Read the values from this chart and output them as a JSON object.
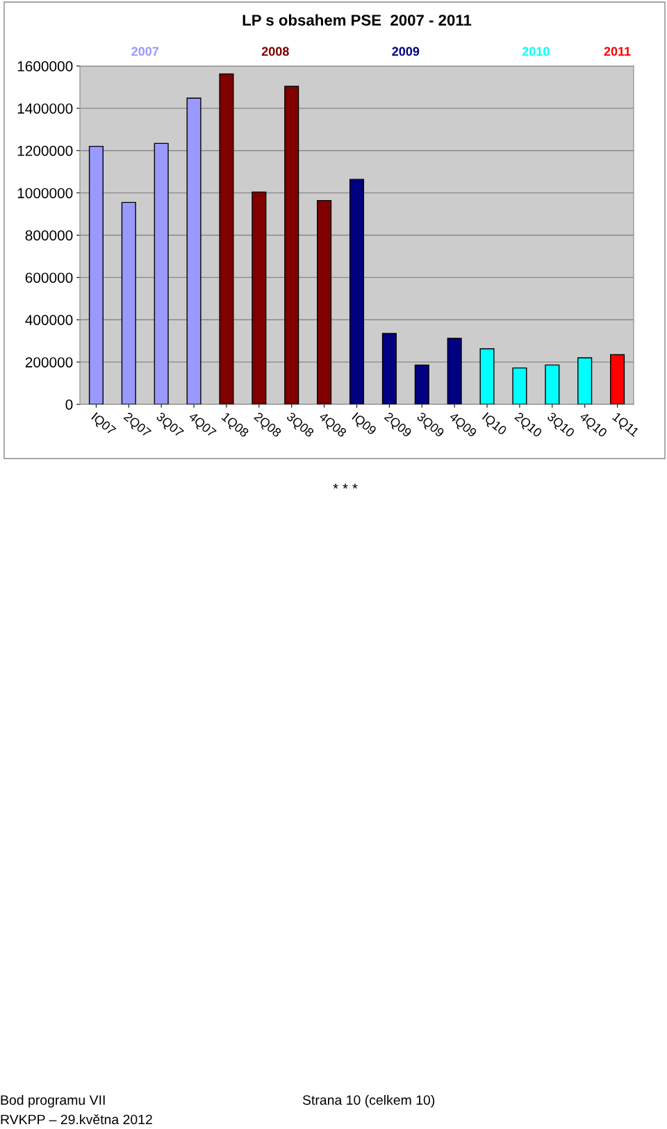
{
  "chart_data": {
    "type": "bar",
    "title": "LP s obsahem PSE  2007 - 2011",
    "categories": [
      "IQ07",
      "2Q07",
      "3Q07",
      "4Q07",
      "1Q08",
      "2Q08",
      "3Q08",
      "4Q08",
      "IQ09",
      "2Q09",
      "3Q09",
      "4Q09",
      "IQ10",
      "2Q10",
      "3Q10",
      "4Q10",
      "1Q11"
    ],
    "series": [
      {
        "name": "2007",
        "color": "#9999ff",
        "values": [
          1220000,
          955000,
          1234000,
          1448000,
          null,
          null,
          null,
          null,
          null,
          null,
          null,
          null,
          null,
          null,
          null,
          null,
          null
        ]
      },
      {
        "name": "2008",
        "color": "#800000",
        "values": [
          null,
          null,
          null,
          null,
          1562000,
          1004000,
          1504000,
          964000,
          null,
          null,
          null,
          null,
          null,
          null,
          null,
          null,
          null
        ]
      },
      {
        "name": "2009",
        "color": "#000080",
        "values": [
          null,
          null,
          null,
          null,
          null,
          null,
          null,
          null,
          1064000,
          335000,
          186000,
          312000,
          null,
          null,
          null,
          null,
          null
        ]
      },
      {
        "name": "2010",
        "color": "#00ffff",
        "values": [
          null,
          null,
          null,
          null,
          null,
          null,
          null,
          null,
          null,
          null,
          null,
          null,
          263000,
          172000,
          186000,
          220000,
          null
        ]
      },
      {
        "name": "2011",
        "color": "#ff0000",
        "values": [
          null,
          null,
          null,
          null,
          null,
          null,
          null,
          null,
          null,
          null,
          null,
          null,
          null,
          null,
          null,
          null,
          235000
        ]
      }
    ],
    "ylim": [
      0,
      1600000
    ],
    "yticks": [
      0,
      200000,
      400000,
      600000,
      800000,
      1000000,
      1200000,
      1400000,
      1600000
    ],
    "grid": "y",
    "annotations": [
      "* * *",
      "Bod programu VII",
      "Strana 10 (celkem 10)",
      "RVKPP – 29.května 2012"
    ]
  }
}
